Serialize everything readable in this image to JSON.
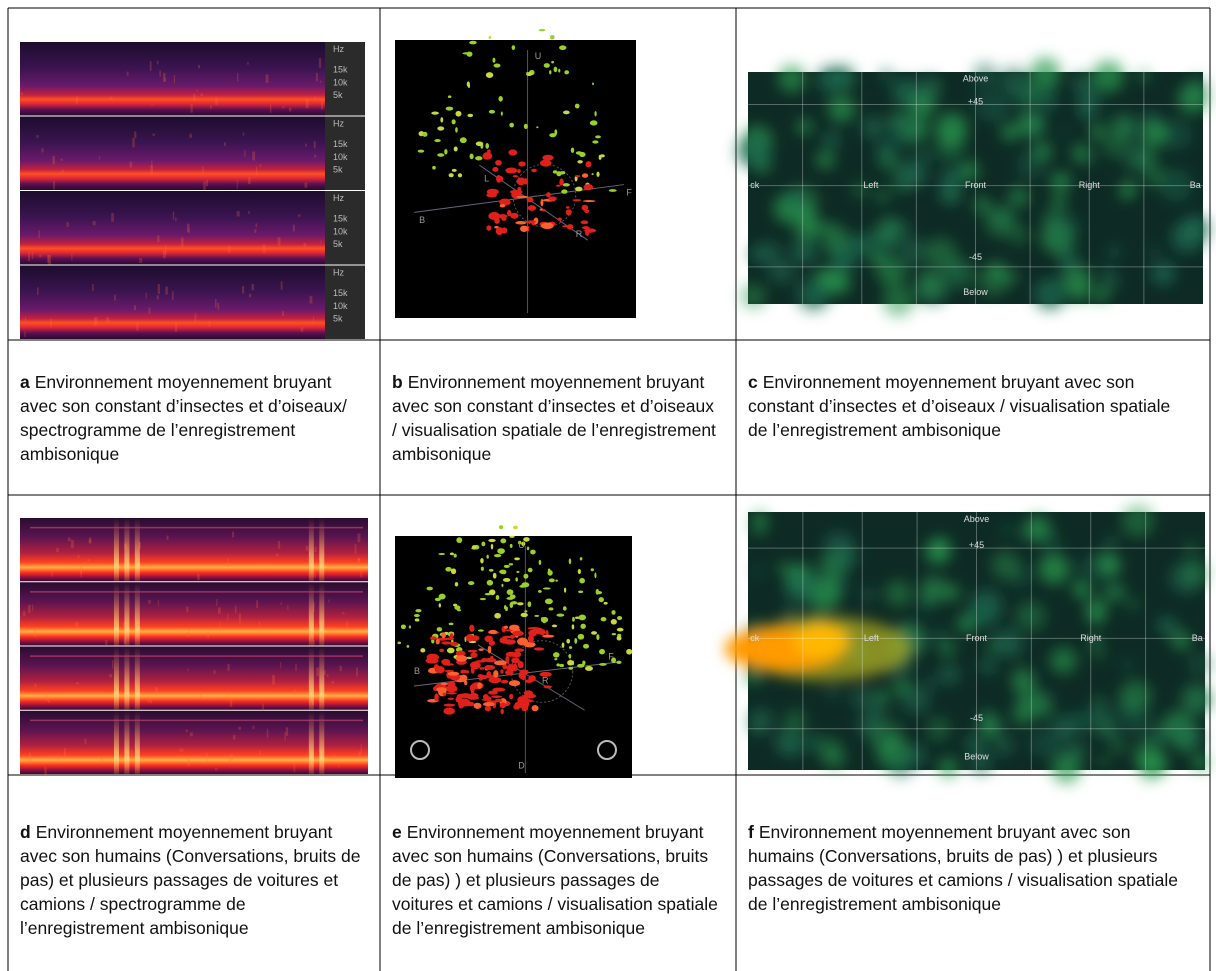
{
  "panels": [
    {
      "label": "a",
      "caption": "Environnement moyennement bruyant avec son constant d’insectes et d’oiseaux/ spectrogramme de l’enregistrement ambisonique",
      "image": {
        "kind": "spectrogram",
        "labels": [
          "Hz",
          "15k",
          "10k",
          "5k"
        ]
      }
    },
    {
      "label": "b",
      "caption": "Environnement moyennement bruyant avec son constant d’insectes et d’oiseaux / visualisation spatiale de l’enregistrement ambisonique",
      "image": {
        "kind": "spatial",
        "labels": [
          "U",
          "L",
          "F",
          "B",
          "R"
        ]
      }
    },
    {
      "label": "c",
      "caption": "Environnement moyennement bruyant avec son constant d’insectes et d’oiseaux / visualisation spatiale de l’enregistrement ambisonique",
      "image": {
        "kind": "heatmap",
        "labels": [
          "Above",
          "+45",
          "ck",
          "Left",
          "Front",
          "Right",
          "Ba",
          "-45",
          "Below"
        ]
      }
    },
    {
      "label": "d",
      "caption": "Environnement moyennement bruyant avec son humains (Conversations, bruits de pas) et plusieurs passages de voitures et camions / spectrogramme de l’enregistrement ambisonique",
      "image": {
        "kind": "spectrogram"
      }
    },
    {
      "label": "e",
      "caption": "Environnement moyennement bruyant avec son humains (Conversations, bruits de pas) ) et plusieurs passages de voitures et camions / visualisation spatiale de l’enregistrement ambisonique",
      "image": {
        "kind": "spatial",
        "labels": [
          "U",
          "B",
          "R",
          "F",
          "D"
        ]
      }
    },
    {
      "label": "f",
      "caption": "Environnement moyennement bruyant avec son humains (Conversations, bruits de pas) ) et plusieurs passages de voitures et camions / visualisation spatiale  de l’enregistrement ambisonique",
      "image": {
        "kind": "heatmap",
        "labels": [
          "Above",
          "+45",
          "ck",
          "Left",
          "Front",
          "Right",
          "Ba",
          "-45",
          "Below"
        ]
      }
    }
  ]
}
